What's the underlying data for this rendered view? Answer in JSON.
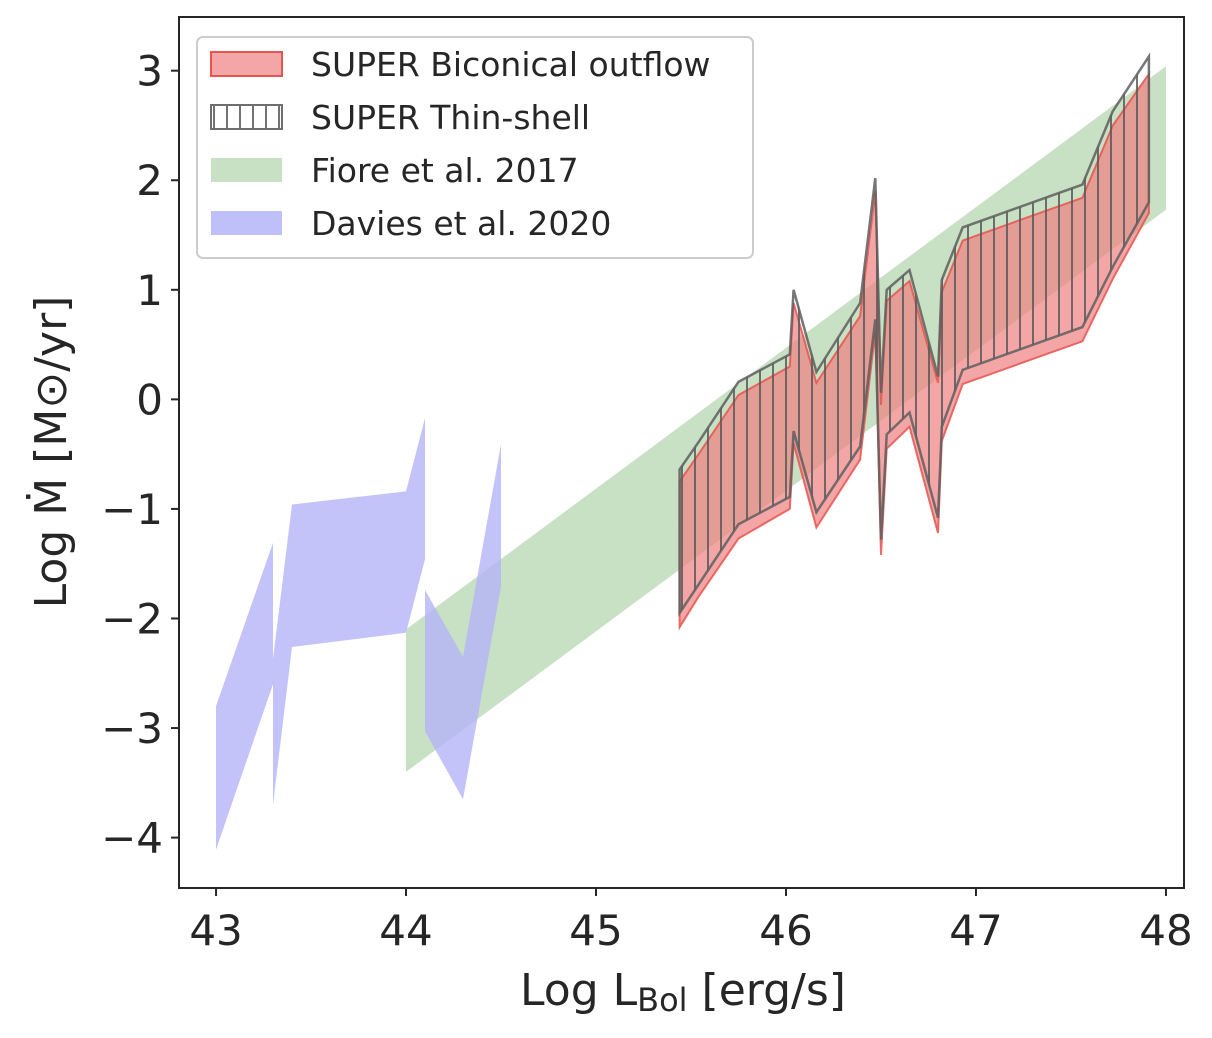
{
  "chart_data": {
    "type": "area",
    "xlabel": "Log L",
    "xlabel_sub": "Bol",
    "xlabel_unit": " [erg/s]",
    "ylabel": "Log Ṁ [M⊙/yr]",
    "xlim": [
      42.805,
      48.095
    ],
    "ylim": [
      -4.46,
      3.49
    ],
    "xticks": [
      43,
      44,
      45,
      46,
      47,
      48
    ],
    "xtick_labels": [
      "43",
      "44",
      "45",
      "46",
      "47",
      "48"
    ],
    "yticks": [
      -4,
      -3,
      -2,
      -1,
      0,
      1,
      2,
      3
    ],
    "ytick_labels": [
      "−4",
      "−3",
      "−2",
      "−1",
      "0",
      "1",
      "2",
      "3"
    ],
    "grid": false,
    "legend_position": "top-left",
    "series": [
      {
        "name": "SUPER Biconical outflow",
        "color": "#f08080",
        "edge": "#e8544f",
        "segments": [
          {
            "x": [
              45.44,
              45.54,
              45.75,
              46.02,
              46.04,
              46.16,
              46.39,
              46.47,
              46.5,
              46.53,
              46.65,
              46.8,
              46.82,
              46.93,
              47.56,
              47.72,
              47.91
            ],
            "upper": [
              -0.75,
              -0.5,
              0.04,
              0.3,
              0.88,
              0.15,
              0.76,
              1.9,
              -0.05,
              0.9,
              1.08,
              0.15,
              0.98,
              1.45,
              1.84,
              2.5,
              2.97
            ],
            "lower": [
              -2.08,
              -1.8,
              -1.27,
              -1.0,
              -0.4,
              -1.17,
              -0.55,
              0.62,
              -1.42,
              -0.45,
              -0.25,
              -1.22,
              -0.38,
              0.14,
              0.53,
              1.1,
              1.7
            ]
          }
        ]
      },
      {
        "name": "SUPER Thin-shell",
        "color": "none",
        "edge": "#6e6e6e",
        "hatch": "vertical",
        "segments": [
          {
            "x": [
              45.44,
              45.54,
              45.75,
              46.02,
              46.04,
              46.16,
              46.39,
              46.47,
              46.5,
              46.53,
              46.65,
              46.8,
              46.82,
              46.93,
              47.56,
              47.72,
              47.91
            ],
            "upper": [
              -0.64,
              -0.39,
              0.16,
              0.41,
              1.0,
              0.25,
              0.88,
              2.02,
              0.06,
              1.0,
              1.18,
              0.21,
              1.09,
              1.57,
              1.96,
              2.63,
              3.13
            ],
            "lower": [
              -1.95,
              -1.69,
              -1.14,
              -0.89,
              -0.29,
              -1.03,
              -0.43,
              0.73,
              -1.28,
              -0.32,
              -0.12,
              -1.08,
              -0.25,
              0.27,
              0.66,
              1.21,
              1.8
            ]
          }
        ]
      },
      {
        "name": "Fiore et al. 2017",
        "color": "#c8e1c4",
        "segments": [
          {
            "x": [
              44.0,
              48.0
            ],
            "upper": [
              -2.1,
              3.04
            ],
            "lower": [
              -3.4,
              1.73
            ]
          }
        ]
      },
      {
        "name": "Davies et al. 2020",
        "color": "#b4b4f8",
        "segments": [
          {
            "x": [
              43.0,
              43.3
            ],
            "upper": [
              -2.8,
              -1.31
            ],
            "lower": [
              -4.11,
              -2.6
            ]
          },
          {
            "x": [
              43.3,
              43.4,
              44.0,
              44.1
            ],
            "upper": [
              -2.37,
              -0.96,
              -0.84,
              -0.17
            ],
            "lower": [
              -3.7,
              -2.26,
              -2.13,
              -1.46
            ]
          },
          {
            "x": [
              44.1,
              44.3,
              44.5
            ],
            "upper": [
              -1.74,
              -2.35,
              -0.41
            ],
            "lower": [
              -3.03,
              -3.65,
              -1.71
            ]
          }
        ]
      }
    ],
    "draw_order": [
      2,
      3,
      0,
      1
    ]
  }
}
